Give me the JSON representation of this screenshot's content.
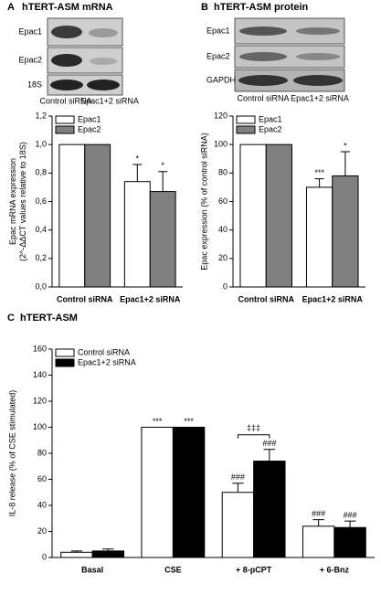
{
  "blots": [
    {
      "panel": "A",
      "title": "hTERT-ASM mRNA",
      "rows": [
        "Epac1",
        "Epac2",
        "18S"
      ],
      "lanes": [
        "Control siRNA",
        "Epac1+2 siRNA"
      ]
    },
    {
      "panel": "B",
      "title": "hTERT-ASM protein",
      "rows": [
        "Epac1",
        "Epac2",
        "GAPDH"
      ],
      "lanes": [
        "Control siRNA",
        "Epac1+2 siRNA"
      ]
    }
  ],
  "chart_data": [
    {
      "type": "bar",
      "y_label": [
        "Epac mRNA expression",
        "(2^-ΔΔCT values relative to 18S)"
      ],
      "categories": [
        "Control siRNA",
        "Epac1+2 siRNA"
      ],
      "series": [
        {
          "name": "Epac1",
          "color": "#ffffff",
          "values": [
            1.0,
            0.74
          ],
          "errors": [
            null,
            0.12
          ],
          "annotations": [
            null,
            "*"
          ]
        },
        {
          "name": "Epac2",
          "color": "#808080",
          "values": [
            1.0,
            0.67
          ],
          "errors": [
            null,
            0.14
          ],
          "annotations": [
            null,
            "*"
          ]
        }
      ],
      "ylim": [
        0,
        1.2
      ],
      "yticks": [
        {
          "value": 0,
          "label": "0,0"
        },
        {
          "value": 0.2,
          "label": "0,2"
        },
        {
          "value": 0.4,
          "label": "0,4"
        },
        {
          "value": 0.6,
          "label": "0,6"
        },
        {
          "value": 0.8,
          "label": "0,8"
        },
        {
          "value": 1.0,
          "label": "1,0"
        },
        {
          "value": 1.2,
          "label": "1,2"
        }
      ],
      "legend": "top-left"
    },
    {
      "type": "bar",
      "y_label": [
        "Epac expression (% of control siRNA)"
      ],
      "categories": [
        "Control siRNA",
        "Epac1+2 siRNA"
      ],
      "series": [
        {
          "name": "Epac1",
          "color": "#ffffff",
          "values": [
            100,
            70
          ],
          "errors": [
            null,
            6
          ],
          "annotations": [
            null,
            "***"
          ]
        },
        {
          "name": "Epac2",
          "color": "#808080",
          "values": [
            100,
            78
          ],
          "errors": [
            null,
            17
          ],
          "annotations": [
            null,
            "*"
          ]
        }
      ],
      "ylim": [
        0,
        120
      ],
      "yticks": [
        0,
        20,
        40,
        60,
        80,
        100,
        120
      ],
      "legend": "top-left"
    },
    {
      "type": "bar",
      "panel": "C",
      "title": "hTERT-ASM",
      "y_label": [
        "IL-8 release (% of CSE stimulated)"
      ],
      "categories": [
        "Basal",
        "CSE",
        "+ 8-pCPT",
        "+ 6-Bnz"
      ],
      "series": [
        {
          "name": "Control siRNA",
          "color": "#ffffff",
          "values": [
            4,
            100,
            50,
            24
          ],
          "errors": [
            1,
            0,
            7,
            5
          ],
          "annotations": [
            null,
            "***",
            "###",
            "###"
          ]
        },
        {
          "name": "Epac1+2 siRNA",
          "color": "#000000",
          "values": [
            5,
            100,
            74,
            23
          ],
          "errors": [
            1.5,
            0,
            9,
            5
          ],
          "annotations": [
            null,
            "***",
            "###",
            "###"
          ]
        }
      ],
      "bracket": {
        "label": "‡‡‡",
        "category": "+ 8-pCPT"
      },
      "ylim": [
        0,
        160
      ],
      "yticks": [
        0,
        20,
        40,
        60,
        80,
        100,
        120,
        140,
        160
      ],
      "legend": "top-left"
    }
  ]
}
